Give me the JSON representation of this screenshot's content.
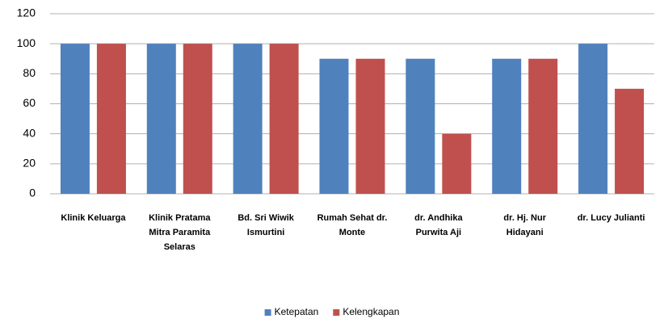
{
  "chart_data": {
    "type": "bar",
    "categories": [
      "Klinik Keluarga",
      "Klinik Pratama Mitra Paramita Selaras",
      "Bd. Sri Wiwik Ismurtini",
      "Rumah Sehat dr. Monte",
      "dr. Andhika Purwita Aji",
      "dr. Hj. Nur Hidayani",
      "dr. Lucy Julianti"
    ],
    "series": [
      {
        "name": "Ketepatan",
        "color": "#4f81bd",
        "values": [
          100,
          100,
          100,
          90,
          90,
          90,
          100
        ]
      },
      {
        "name": "Kelengkapan",
        "color": "#c0504d",
        "values": [
          100,
          100,
          100,
          90,
          40,
          90,
          70
        ]
      }
    ],
    "ylim": [
      0,
      120
    ],
    "yticks": [
      0,
      20,
      40,
      60,
      80,
      100,
      120
    ],
    "grid": true,
    "legend": "bottom"
  }
}
